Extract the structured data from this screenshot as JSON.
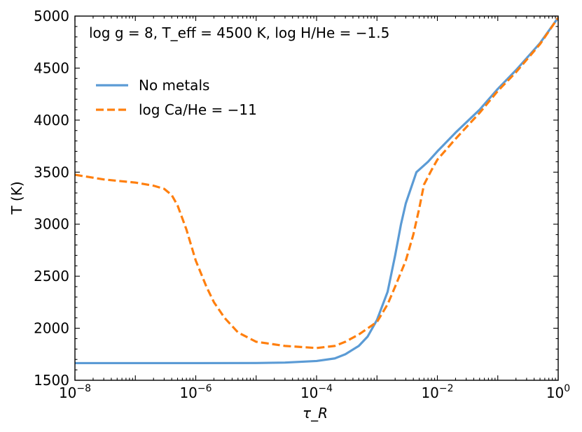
{
  "chart_data": {
    "type": "line",
    "annotation": "log g = 8, T_eff = 4500 K, log H/He = −1.5",
    "xlabel": "τ_R",
    "ylabel": "T (K)",
    "x_scale": "log",
    "xlim": [
      1e-08,
      1
    ],
    "ylim": [
      1500,
      5000
    ],
    "x_ticks": [
      {
        "value": 1e-08,
        "base": "10",
        "exp": "−8"
      },
      {
        "value": 1e-06,
        "base": "10",
        "exp": "−6"
      },
      {
        "value": 0.0001,
        "base": "10",
        "exp": "−4"
      },
      {
        "value": 0.01,
        "base": "10",
        "exp": "−2"
      },
      {
        "value": 1,
        "base": "10",
        "exp": "0"
      }
    ],
    "y_ticks": [
      1500,
      2000,
      2500,
      3000,
      3500,
      4000,
      4500,
      5000
    ],
    "legend_position": "upper-left",
    "grid": false,
    "series": [
      {
        "name": "No metals",
        "color": "#5b9bd5",
        "style": "solid",
        "points": [
          [
            1e-08,
            1665
          ],
          [
            1e-07,
            1665
          ],
          [
            1e-06,
            1665
          ],
          [
            1e-05,
            1666
          ],
          [
            3e-05,
            1670
          ],
          [
            0.0001,
            1685
          ],
          [
            0.0002,
            1710
          ],
          [
            0.0003,
            1750
          ],
          [
            0.0005,
            1830
          ],
          [
            0.0007,
            1920
          ],
          [
            0.001,
            2080
          ],
          [
            0.0015,
            2350
          ],
          [
            0.002,
            2700
          ],
          [
            0.0025,
            3000
          ],
          [
            0.003,
            3200
          ],
          [
            0.0045,
            3500
          ],
          [
            0.007,
            3600
          ],
          [
            0.01,
            3700
          ],
          [
            0.02,
            3880
          ],
          [
            0.05,
            4100
          ],
          [
            0.1,
            4300
          ],
          [
            0.2,
            4480
          ],
          [
            0.5,
            4740
          ],
          [
            1,
            4985
          ]
        ]
      },
      {
        "name": "log Ca/He = −11",
        "color": "#ff7f0e",
        "style": "dashed",
        "points": [
          [
            1e-08,
            3475
          ],
          [
            3e-08,
            3430
          ],
          [
            1e-07,
            3400
          ],
          [
            2e-07,
            3370
          ],
          [
            3e-07,
            3340
          ],
          [
            4e-07,
            3280
          ],
          [
            5e-07,
            3180
          ],
          [
            7e-07,
            2950
          ],
          [
            1e-06,
            2650
          ],
          [
            1.5e-06,
            2400
          ],
          [
            2e-06,
            2250
          ],
          [
            3e-06,
            2100
          ],
          [
            5e-06,
            1960
          ],
          [
            1e-05,
            1870
          ],
          [
            3e-05,
            1830
          ],
          [
            0.0001,
            1810
          ],
          [
            0.0002,
            1830
          ],
          [
            0.0003,
            1870
          ],
          [
            0.0005,
            1940
          ],
          [
            0.001,
            2060
          ],
          [
            0.0015,
            2230
          ],
          [
            0.002,
            2400
          ],
          [
            0.003,
            2650
          ],
          [
            0.004,
            2900
          ],
          [
            0.005,
            3150
          ],
          [
            0.006,
            3380
          ],
          [
            0.008,
            3520
          ],
          [
            0.01,
            3620
          ],
          [
            0.02,
            3820
          ],
          [
            0.05,
            4070
          ],
          [
            0.1,
            4280
          ],
          [
            0.2,
            4460
          ],
          [
            0.5,
            4730
          ],
          [
            1,
            4985
          ]
        ]
      }
    ]
  }
}
